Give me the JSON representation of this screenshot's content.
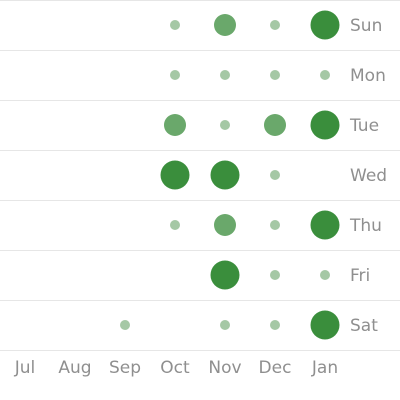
{
  "chart_data": {
    "type": "scatter",
    "title": "",
    "xlabel": "",
    "ylabel": "",
    "x_categories": [
      "Jul",
      "Aug",
      "Sep",
      "Oct",
      "Nov",
      "Dec",
      "Jan"
    ],
    "y_categories": [
      "Sun",
      "Mon",
      "Tue",
      "Wed",
      "Thu",
      "Fri",
      "Sat"
    ],
    "legend": "none",
    "grid": true,
    "colors": {
      "low": "#a5c8a5",
      "mid": "#6aa86b",
      "high": "#3a8e3c",
      "grid": "#e6e6e6",
      "label": "#8f8f8f"
    },
    "points": [
      {
        "x": "Oct",
        "y": "Sun",
        "level": 1
      },
      {
        "x": "Nov",
        "y": "Sun",
        "level": 2
      },
      {
        "x": "Dec",
        "y": "Sun",
        "level": 1
      },
      {
        "x": "Jan",
        "y": "Sun",
        "level": 3
      },
      {
        "x": "Oct",
        "y": "Mon",
        "level": 1
      },
      {
        "x": "Nov",
        "y": "Mon",
        "level": 1
      },
      {
        "x": "Dec",
        "y": "Mon",
        "level": 1
      },
      {
        "x": "Jan",
        "y": "Mon",
        "level": 1
      },
      {
        "x": "Oct",
        "y": "Tue",
        "level": 2
      },
      {
        "x": "Nov",
        "y": "Tue",
        "level": 1
      },
      {
        "x": "Dec",
        "y": "Tue",
        "level": 2
      },
      {
        "x": "Jan",
        "y": "Tue",
        "level": 3
      },
      {
        "x": "Oct",
        "y": "Wed",
        "level": 3
      },
      {
        "x": "Nov",
        "y": "Wed",
        "level": 3
      },
      {
        "x": "Dec",
        "y": "Wed",
        "level": 1
      },
      {
        "x": "Oct",
        "y": "Thu",
        "level": 1
      },
      {
        "x": "Nov",
        "y": "Thu",
        "level": 2
      },
      {
        "x": "Dec",
        "y": "Thu",
        "level": 1
      },
      {
        "x": "Jan",
        "y": "Thu",
        "level": 3
      },
      {
        "x": "Nov",
        "y": "Fri",
        "level": 3
      },
      {
        "x": "Dec",
        "y": "Fri",
        "level": 1
      },
      {
        "x": "Jan",
        "y": "Fri",
        "level": 1
      },
      {
        "x": "Sep",
        "y": "Sat",
        "level": 1
      },
      {
        "x": "Nov",
        "y": "Sat",
        "level": 1
      },
      {
        "x": "Dec",
        "y": "Sat",
        "level": 1
      },
      {
        "x": "Jan",
        "y": "Sat",
        "level": 3
      }
    ]
  }
}
